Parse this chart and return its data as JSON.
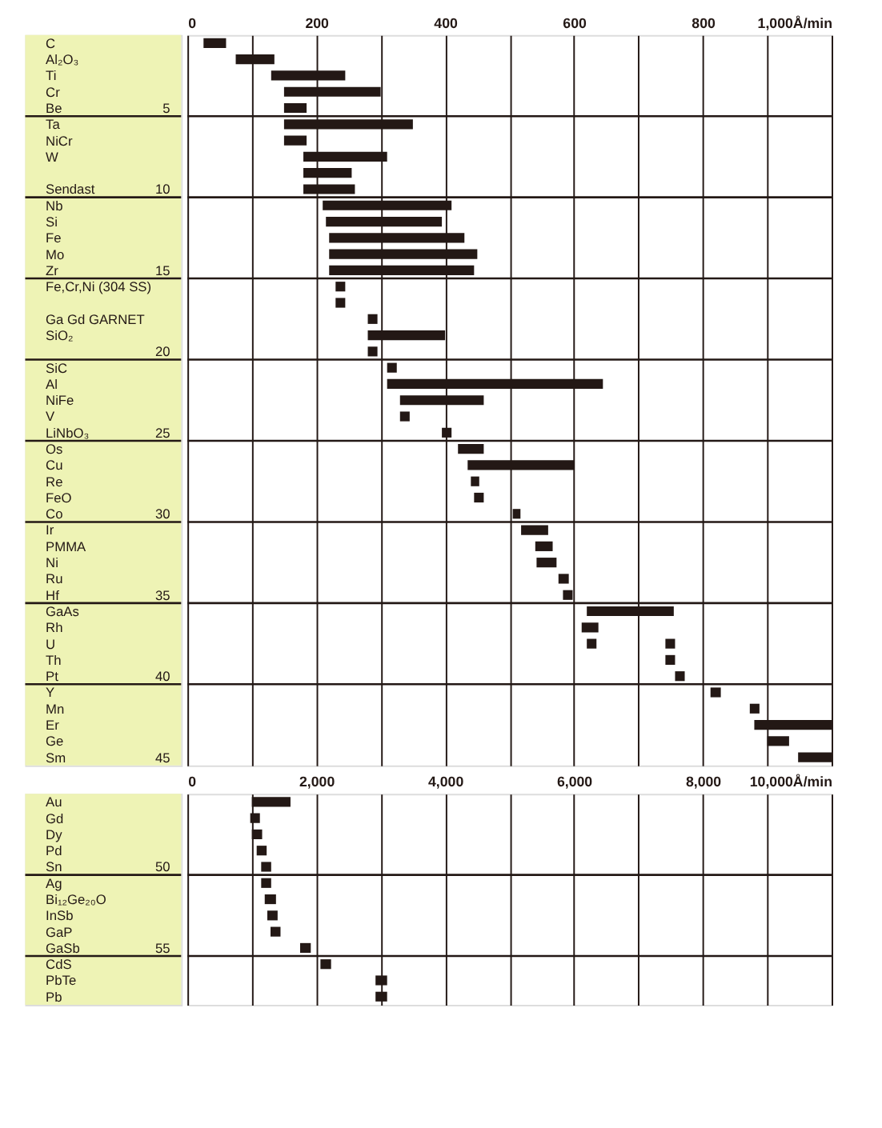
{
  "chart_data": [
    {
      "type": "bar",
      "orientation": "horizontal",
      "categories": [
        "C",
        "Al₂O₃",
        "Ti",
        "Cr",
        "Be",
        "Ta",
        "NiCr",
        "W",
        null,
        "Sendast",
        "Nb",
        "Si",
        "Fe",
        "Mo",
        "Zr",
        "Fe,Cr,Ni (304 SS)",
        null,
        "Ga Gd GARNET",
        "SiO₂",
        null,
        "SiC",
        "Al",
        "NiFe",
        "V",
        "LiNbO₃",
        "Os",
        "Cu",
        "Re",
        "FeO",
        "Co",
        "Ir",
        "PMMA",
        "Ni",
        "Ru",
        "Hf",
        "GaAs",
        "Rh",
        "U",
        "Th",
        "Pt",
        "Y",
        "Mn",
        "Er",
        "Ge",
        "Sm"
      ],
      "series": [
        {
          "color": "#231815",
          "base": [
            25,
            75,
            130,
            150,
            150,
            150,
            150,
            180,
            180,
            180,
            210,
            215,
            220,
            220,
            220,
            230,
            230,
            280,
            280,
            280,
            310,
            310,
            330,
            330,
            395,
            420,
            435,
            440,
            445,
            505,
            518,
            540,
            542,
            576,
            583,
            620,
            612,
            620,
            742,
            757,
            812,
            873,
            880,
            900,
            948
          ],
          "values": [
            35,
            60,
            115,
            150,
            35,
            200,
            35,
            130,
            75,
            80,
            200,
            180,
            210,
            230,
            225,
            15,
            15,
            15,
            120,
            15,
            15,
            335,
            130,
            15,
            15,
            40,
            165,
            13,
            15,
            12,
            42,
            27,
            31,
            16,
            15,
            135,
            26,
            15,
            15,
            15,
            16,
            15,
            120,
            34,
            52
          ]
        },
        {
          "color": "#231815",
          "base": [
            null,
            null,
            null,
            null,
            null,
            null,
            null,
            null,
            null,
            null,
            null,
            null,
            null,
            null,
            null,
            null,
            null,
            null,
            null,
            null,
            null,
            null,
            null,
            null,
            null,
            null,
            null,
            null,
            null,
            null,
            null,
            null,
            null,
            null,
            null,
            null,
            null,
            742,
            null,
            null,
            null,
            null,
            null,
            null,
            null
          ],
          "values": [
            null,
            null,
            null,
            null,
            null,
            null,
            null,
            null,
            null,
            null,
            null,
            null,
            null,
            null,
            null,
            null,
            null,
            null,
            null,
            null,
            null,
            null,
            null,
            null,
            null,
            null,
            null,
            null,
            null,
            null,
            null,
            null,
            null,
            null,
            null,
            null,
            null,
            15,
            null,
            null,
            null,
            null,
            null,
            null,
            null
          ]
        }
      ],
      "xlim": [
        0,
        1000
      ],
      "xticks": [
        0,
        {
          "value": 100,
          "label": null
        },
        200,
        {
          "value": 300,
          "label": null
        },
        400,
        {
          "value": 500,
          "label": null
        },
        600,
        {
          "value": 700,
          "label": null
        },
        800,
        {
          "value": 900,
          "label": null
        },
        {
          "value": 1000,
          "label": "1,000Å/min"
        }
      ],
      "grid": "x",
      "annotations": [
        "5",
        "10",
        "15",
        "20",
        "25",
        "30",
        "35",
        "40",
        "45"
      ]
    },
    {
      "type": "bar",
      "orientation": "horizontal",
      "categories": [
        "Au",
        "Gd",
        "Dy",
        "Pd",
        "Sn",
        "Ag",
        "Bi₁₂Ge₂₀O",
        "InSb",
        "GaP",
        "GaSb",
        "CdS",
        "PbTe",
        "Pb"
      ],
      "series": [
        {
          "color": "#231815",
          "base": [
            1000,
            975,
            1000,
            1075,
            1145,
            1145,
            1200,
            1240,
            1290,
            1750,
            2065,
            2920,
            2920
          ],
          "values": [
            600,
            150,
            160,
            155,
            155,
            155,
            175,
            160,
            155,
            165,
            165,
            180,
            180
          ]
        }
      ],
      "xlim": [
        0,
        10000
      ],
      "xticks": [
        0,
        {
          "value": 1000,
          "label": null
        },
        {
          "value": 2000,
          "label": "2,000"
        },
        {
          "value": 3000,
          "label": null
        },
        {
          "value": 4000,
          "label": "4,000"
        },
        {
          "value": 5000,
          "label": null
        },
        {
          "value": 6000,
          "label": "6,000"
        },
        {
          "value": 7000,
          "label": null
        },
        {
          "value": 8000,
          "label": "8,000"
        },
        {
          "value": 9000,
          "label": null
        },
        {
          "value": 10000,
          "label": "10,000Å/min"
        }
      ],
      "grid": "x",
      "annotations": [
        "50",
        "55"
      ]
    }
  ]
}
